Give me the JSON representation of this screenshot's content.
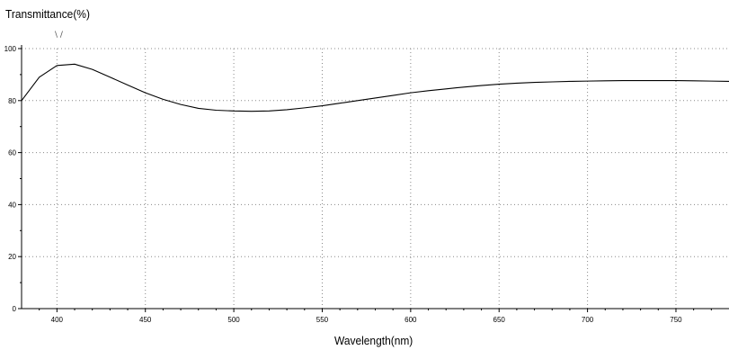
{
  "chart_data": {
    "type": "line",
    "title": "",
    "ylabel": "Transmittance(%)",
    "xlabel": "Wavelength(nm)",
    "xlim": [
      380,
      780
    ],
    "ylim": [
      0,
      100
    ],
    "x_ticks": [
      400,
      450,
      500,
      550,
      600,
      650,
      700,
      750
    ],
    "x_tick_labels": [
      "400",
      "450",
      "500",
      "550",
      "600",
      "650",
      "700",
      "750"
    ],
    "y_ticks": [
      0,
      20,
      40,
      60,
      80,
      100
    ],
    "y_tick_labels": [
      "0",
      "20",
      "40",
      "60",
      "80",
      "100"
    ],
    "grid": true,
    "series": [
      {
        "x": [
          380,
          390,
          400,
          410,
          420,
          430,
          440,
          450,
          460,
          470,
          480,
          490,
          500,
          510,
          520,
          530,
          540,
          550,
          560,
          570,
          580,
          590,
          600,
          610,
          620,
          630,
          640,
          650,
          660,
          670,
          680,
          690,
          700,
          710,
          720,
          730,
          740,
          750,
          760,
          770,
          780
        ],
        "y": [
          80,
          89,
          93.5,
          94,
          92,
          89,
          86,
          83,
          80.5,
          78.5,
          77,
          76.3,
          76,
          75.9,
          76,
          76.5,
          77.2,
          78,
          79,
          80,
          81,
          82,
          83,
          83.8,
          84.5,
          85.2,
          85.8,
          86.3,
          86.7,
          87,
          87.2,
          87.4,
          87.5,
          87.6,
          87.7,
          87.7,
          87.7,
          87.7,
          87.6,
          87.5,
          87.4
        ],
        "color": "#000000"
      }
    ]
  },
  "marker_text": "\\ /"
}
